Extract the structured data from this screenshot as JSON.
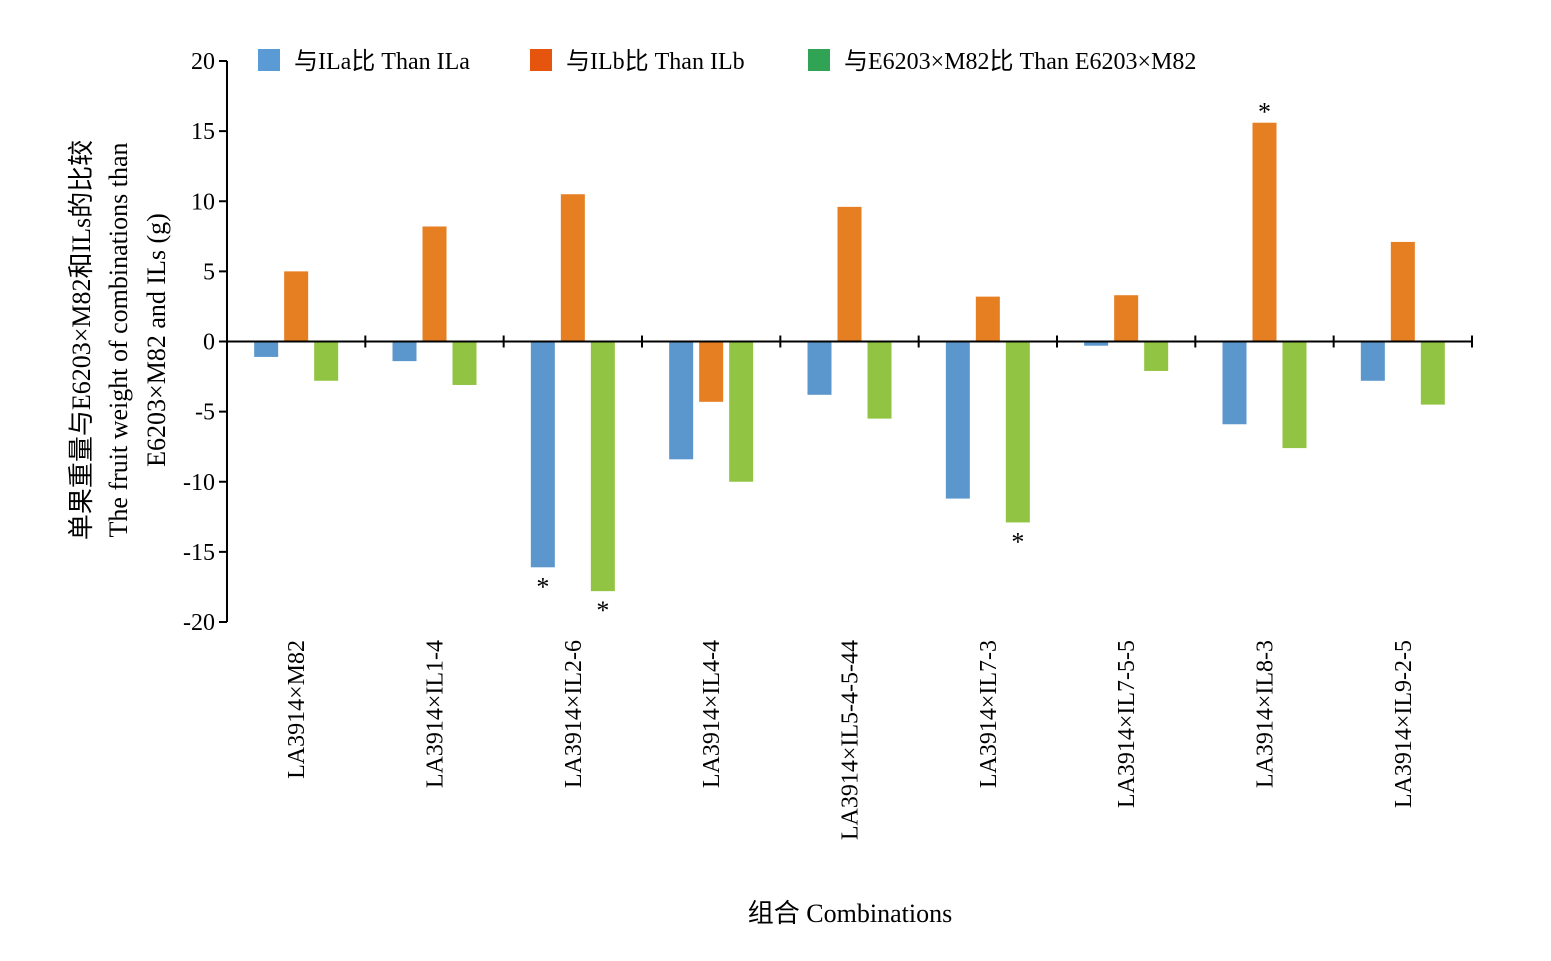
{
  "chart_data": {
    "type": "bar",
    "title": "",
    "xlabel": "组合 Combinations",
    "ylabel_lines": [
      "单果重量与E6203×M82和ILs的比较",
      "The fruit weight of combinations than",
      "E6203×M82 and ILs (g)"
    ],
    "ylim": [
      -20,
      20
    ],
    "yticks": [
      20,
      15,
      10,
      5,
      0,
      -5,
      -10,
      -15,
      -20
    ],
    "grid": false,
    "legend_position": "top",
    "categories": [
      "LA3914×M82",
      "LA3914×IL1-4",
      "LA3914×IL2-6",
      "LA3914×IL4-4",
      "LA3914×IL5-4-5-44",
      "LA3914×IL7-3",
      "LA3914×IL7-5-5",
      "LA3914×IL8-3",
      "LA3914×IL9-2-5"
    ],
    "series": [
      {
        "name": "与ILa比 Than ILa",
        "legend_color": "#5b9bd5",
        "bar_color": "#5b97cc",
        "values": [
          -1.1,
          -1.4,
          -16.1,
          -8.4,
          -3.8,
          -11.2,
          -0.3,
          -5.9,
          -2.8
        ],
        "significant": [
          false,
          false,
          true,
          false,
          false,
          false,
          false,
          false,
          false
        ]
      },
      {
        "name": "与ILb比 Than ILb",
        "legend_color": "#e6550d",
        "bar_color": "#e67e22",
        "values": [
          5.0,
          8.2,
          10.5,
          -4.3,
          9.6,
          3.2,
          3.3,
          15.6,
          7.1
        ],
        "significant": [
          false,
          false,
          false,
          false,
          false,
          false,
          false,
          true,
          false
        ]
      },
      {
        "name": "与E6203×M82比 Than E6203×M82",
        "legend_color": "#31a354",
        "bar_color": "#92c443",
        "values": [
          -2.8,
          -3.1,
          -17.8,
          -10.0,
          -5.5,
          -12.9,
          -2.1,
          -7.6,
          -4.5
        ],
        "significant": [
          false,
          false,
          true,
          false,
          false,
          true,
          false,
          false,
          false
        ]
      }
    ],
    "significance_marker": "*"
  }
}
